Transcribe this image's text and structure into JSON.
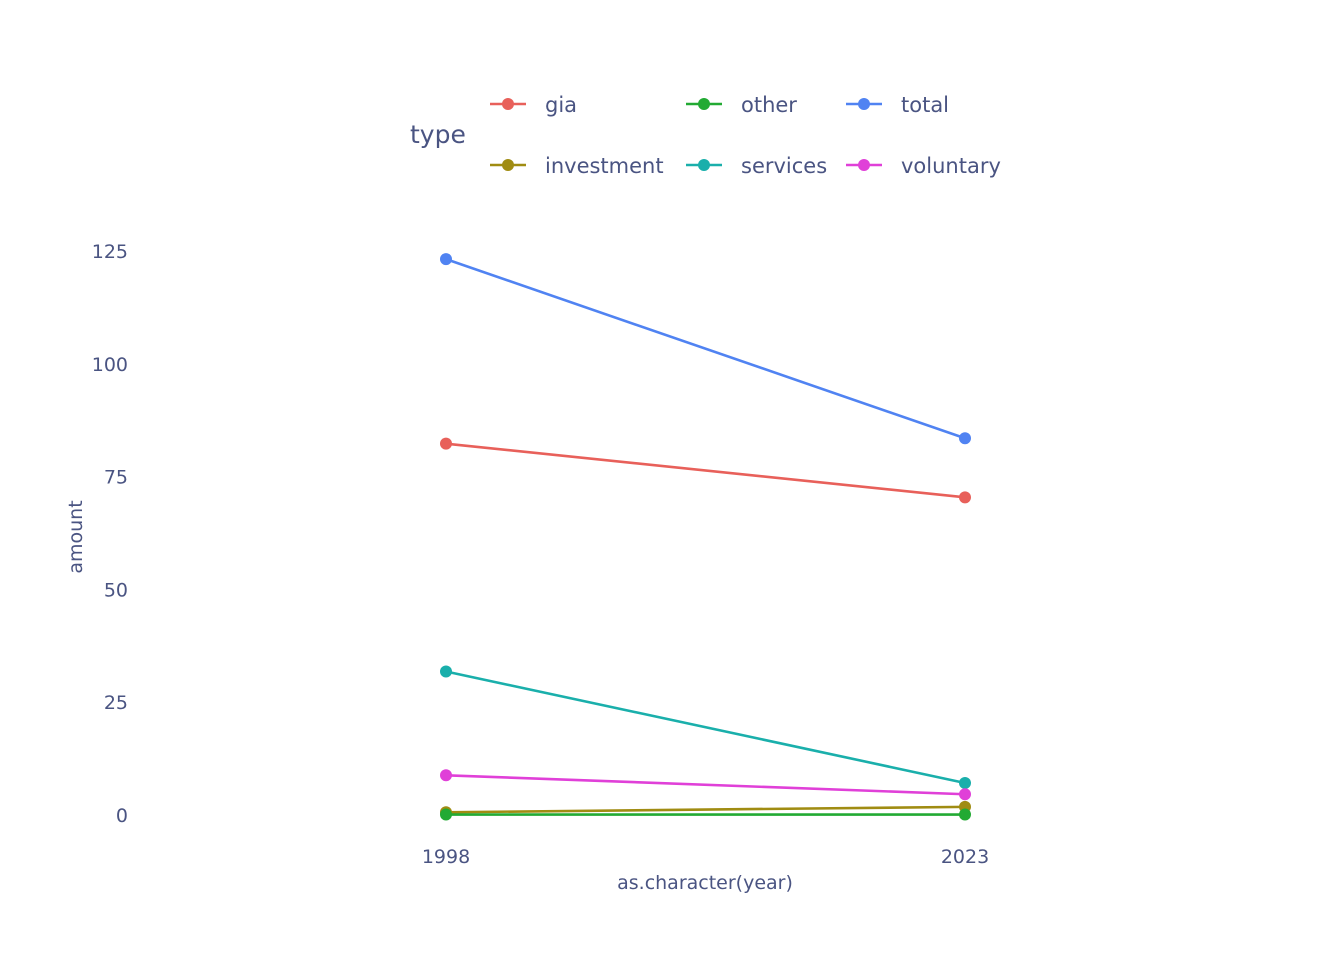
{
  "chart_data": {
    "type": "line",
    "x": [
      "1998",
      "2023"
    ],
    "xlabel": "as.character(year)",
    "ylabel": "amount",
    "ylim": [
      -3,
      135
    ],
    "yticks": [
      0,
      25,
      50,
      75,
      100,
      125
    ],
    "grid": false,
    "legend": {
      "title": "type",
      "placement": "top-center"
    },
    "series": [
      {
        "name": "gia",
        "color": "#e8605a",
        "values": [
          82.3,
          70.4
        ]
      },
      {
        "name": "investment",
        "color": "#a08c12",
        "values": [
          0.6,
          1.8
        ]
      },
      {
        "name": "other",
        "color": "#22aa33",
        "values": [
          0.1,
          0.1
        ]
      },
      {
        "name": "services",
        "color": "#1aafab",
        "values": [
          31.8,
          7.1
        ]
      },
      {
        "name": "total",
        "color": "#5083f2",
        "values": [
          123.2,
          83.5
        ]
      },
      {
        "name": "voluntary",
        "color": "#e040d8",
        "values": [
          8.8,
          4.6
        ]
      }
    ]
  }
}
